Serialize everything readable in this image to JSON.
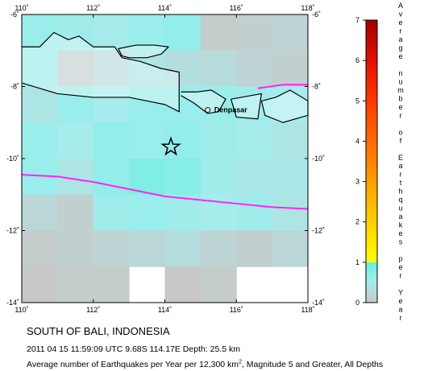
{
  "map": {
    "title": "SOUTH OF BALI, INDONESIA",
    "event_line": "2011 04 15 11:59:09 UTC 9.68S 114.17E Depth: 25.5 km",
    "footnote_prefix": "Average number of Earthquakes per Year per 12,300 km",
    "footnote_sup": "2",
    "footnote_suffix": ", Magnitude 5 and Greater, All Depths",
    "place_label": "Denpasar",
    "lon_range": [
      110,
      118
    ],
    "lat_range": [
      -14,
      -6
    ],
    "lon_ticks": [
      {
        "v": 110,
        "label": "110˚"
      },
      {
        "v": 112,
        "label": "112˚"
      },
      {
        "v": 114,
        "label": "114˚"
      },
      {
        "v": 116,
        "label": "116˚"
      },
      {
        "v": 118,
        "label": "118˚"
      }
    ],
    "lat_ticks": [
      {
        "v": -6,
        "label": "-6˚"
      },
      {
        "v": -8,
        "label": "-8˚"
      },
      {
        "v": -10,
        "label": "-10˚"
      },
      {
        "v": -12,
        "label": "-12˚"
      },
      {
        "v": -14,
        "label": "-14˚"
      }
    ],
    "epicenter": {
      "lon": 114.17,
      "lat": -9.68
    },
    "denpasar": {
      "lon": 115.2,
      "lat": -8.65
    },
    "grid_step": 1,
    "grid_start": [
      110,
      -6
    ],
    "grid_level": [
      [
        0.6,
        0.55,
        0.5,
        0.6,
        0.65,
        0.05,
        0.1,
        0.15
      ],
      [
        0.6,
        0.1,
        0.25,
        0.4,
        0.3,
        0.25,
        0.15,
        0.1
      ],
      [
        0.4,
        0.6,
        0.5,
        0.6,
        0.6,
        0.6,
        0.55,
        0.5
      ],
      [
        0.6,
        0.5,
        0.65,
        0.6,
        0.65,
        0.55,
        0.5,
        0.4
      ],
      [
        0.6,
        0.4,
        0.65,
        0.8,
        0.75,
        0.55,
        0.45,
        0.45
      ],
      [
        0.2,
        0.1,
        0.55,
        0.6,
        0.55,
        0.5,
        0.55,
        0.4
      ],
      [
        0.05,
        0.1,
        0.15,
        0.2,
        0.3,
        0.15,
        0.1,
        0.2
      ],
      [
        0.0,
        0.05,
        0.05,
        null,
        0.0,
        0.05,
        null,
        null
      ]
    ],
    "plate_boundaries": [
      [
        [
          110,
          -10.45
        ],
        [
          111,
          -10.5
        ],
        [
          112,
          -10.65
        ],
        [
          113,
          -10.85
        ],
        [
          114,
          -11.05
        ],
        [
          115,
          -11.15
        ],
        [
          116,
          -11.25
        ],
        [
          117,
          -11.35
        ],
        [
          118,
          -11.4
        ]
      ],
      [
        [
          116.6,
          -8.05
        ],
        [
          117.3,
          -7.95
        ],
        [
          118,
          -7.95
        ]
      ]
    ],
    "coastlines": [
      [
        [
          110.0,
          -6.9
        ],
        [
          110.5,
          -6.9
        ],
        [
          110.9,
          -6.5
        ],
        [
          111.3,
          -6.7
        ],
        [
          111.6,
          -6.6
        ],
        [
          112.0,
          -6.9
        ],
        [
          112.6,
          -6.9
        ],
        [
          112.8,
          -7.2
        ],
        [
          113.3,
          -7.3
        ],
        [
          113.9,
          -7.5
        ],
        [
          114.4,
          -7.6
        ],
        [
          114.4,
          -8.7
        ],
        [
          114.0,
          -8.5
        ],
        [
          113.0,
          -8.3
        ],
        [
          112.0,
          -8.3
        ],
        [
          111.0,
          -8.2
        ],
        [
          110.0,
          -7.9
        ]
      ],
      [
        [
          112.7,
          -6.95
        ],
        [
          113.2,
          -6.85
        ],
        [
          113.7,
          -6.85
        ],
        [
          114.1,
          -6.9
        ],
        [
          113.9,
          -7.1
        ],
        [
          113.5,
          -7.2
        ],
        [
          113.0,
          -7.2
        ],
        [
          112.8,
          -7.15
        ],
        [
          112.7,
          -6.95
        ]
      ],
      [
        [
          114.45,
          -8.15
        ],
        [
          114.9,
          -8.15
        ],
        [
          115.3,
          -8.1
        ],
        [
          115.7,
          -8.35
        ],
        [
          115.5,
          -8.7
        ],
        [
          115.2,
          -8.75
        ],
        [
          114.8,
          -8.45
        ],
        [
          114.45,
          -8.25
        ]
      ],
      [
        [
          115.85,
          -8.35
        ],
        [
          116.7,
          -8.2
        ],
        [
          116.6,
          -8.9
        ],
        [
          116.0,
          -8.85
        ],
        [
          115.85,
          -8.35
        ]
      ],
      [
        [
          116.7,
          -8.4
        ],
        [
          117.1,
          -8.3
        ],
        [
          117.5,
          -8.1
        ],
        [
          118.0,
          -8.4
        ],
        [
          118.0,
          -8.8
        ],
        [
          117.3,
          -9.0
        ],
        [
          116.8,
          -8.8
        ],
        [
          116.7,
          -8.4
        ]
      ]
    ],
    "colorbar": {
      "title_letters": [
        "A",
        "v",
        "e",
        "r",
        "a",
        "g",
        "e",
        "",
        "n",
        "u",
        "m",
        "b",
        "e",
        "r",
        "",
        "o",
        "f",
        "",
        "E",
        "a",
        "r",
        "t",
        "h",
        "q",
        "u",
        "a",
        "k",
        "e",
        "s",
        "",
        "p",
        "e",
        "r",
        "",
        "Y",
        "e",
        "a",
        "r"
      ],
      "ticks": [
        {
          "v": 0,
          "label": "0"
        },
        {
          "v": 1,
          "label": "1"
        },
        {
          "v": 2,
          "label": "2"
        },
        {
          "v": 3,
          "label": "3"
        },
        {
          "v": 4,
          "label": "4"
        },
        {
          "v": 5,
          "label": "5"
        },
        {
          "v": 6,
          "label": "6"
        },
        {
          "v": 7,
          "label": "7"
        }
      ],
      "stops": [
        {
          "v": 0,
          "color": "#c8c8c8"
        },
        {
          "v": 0.5,
          "color": "#a6ecec"
        },
        {
          "v": 1,
          "color": "#66f0e0"
        },
        {
          "v": 1.0001,
          "color": "#ffff00"
        },
        {
          "v": 2,
          "color": "#ffd000"
        },
        {
          "v": 3,
          "color": "#ff9f00"
        },
        {
          "v": 4,
          "color": "#ff6a00"
        },
        {
          "v": 5,
          "color": "#ff3a00"
        },
        {
          "v": 6,
          "color": "#e01000"
        },
        {
          "v": 7,
          "color": "#a00000"
        }
      ]
    },
    "colors": {
      "ocean": "#c9f5f5",
      "plate": "#ff22ff",
      "coast": "#000000",
      "star": "#000000"
    }
  }
}
